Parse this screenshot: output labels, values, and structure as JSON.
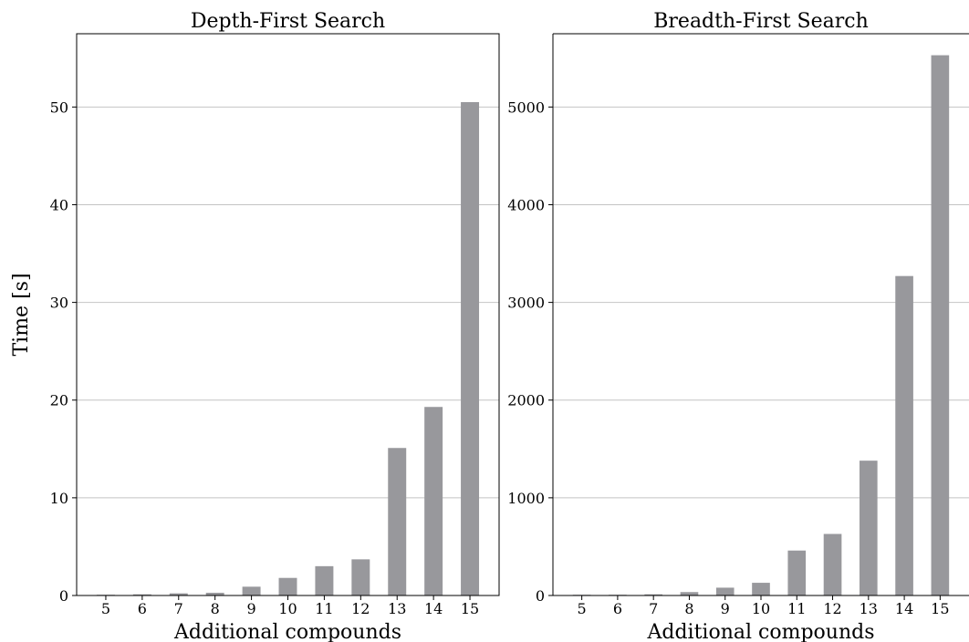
{
  "colors": {
    "bar": "#98989c",
    "grid": "#c4c4c4",
    "axis": "#000000"
  },
  "shared": {
    "ylabel": "Time [s]"
  },
  "chart_data": [
    {
      "type": "bar",
      "title": "Depth-First Search",
      "xlabel": "Additional compounds",
      "ylabel": "Time [s]",
      "categories": [
        "5",
        "6",
        "7",
        "8",
        "9",
        "10",
        "11",
        "12",
        "13",
        "14",
        "15"
      ],
      "values": [
        0.05,
        0.12,
        0.22,
        0.28,
        0.9,
        1.8,
        3.0,
        3.7,
        15.1,
        19.3,
        50.5
      ],
      "ylim": [
        0,
        57.5
      ],
      "yticks": [
        0,
        10,
        20,
        30,
        40,
        50
      ],
      "grid": "y",
      "legend": "none"
    },
    {
      "type": "bar",
      "title": "Breadth-First Search",
      "xlabel": "Additional compounds",
      "categories": [
        "5",
        "6",
        "7",
        "8",
        "9",
        "10",
        "11",
        "12",
        "13",
        "14",
        "15"
      ],
      "values": [
        2,
        5,
        12,
        35,
        80,
        130,
        460,
        630,
        1380,
        3270,
        5530
      ],
      "ylim": [
        0,
        5750
      ],
      "yticks": [
        0,
        1000,
        2000,
        3000,
        4000,
        5000
      ],
      "grid": "y",
      "legend": "none"
    }
  ]
}
